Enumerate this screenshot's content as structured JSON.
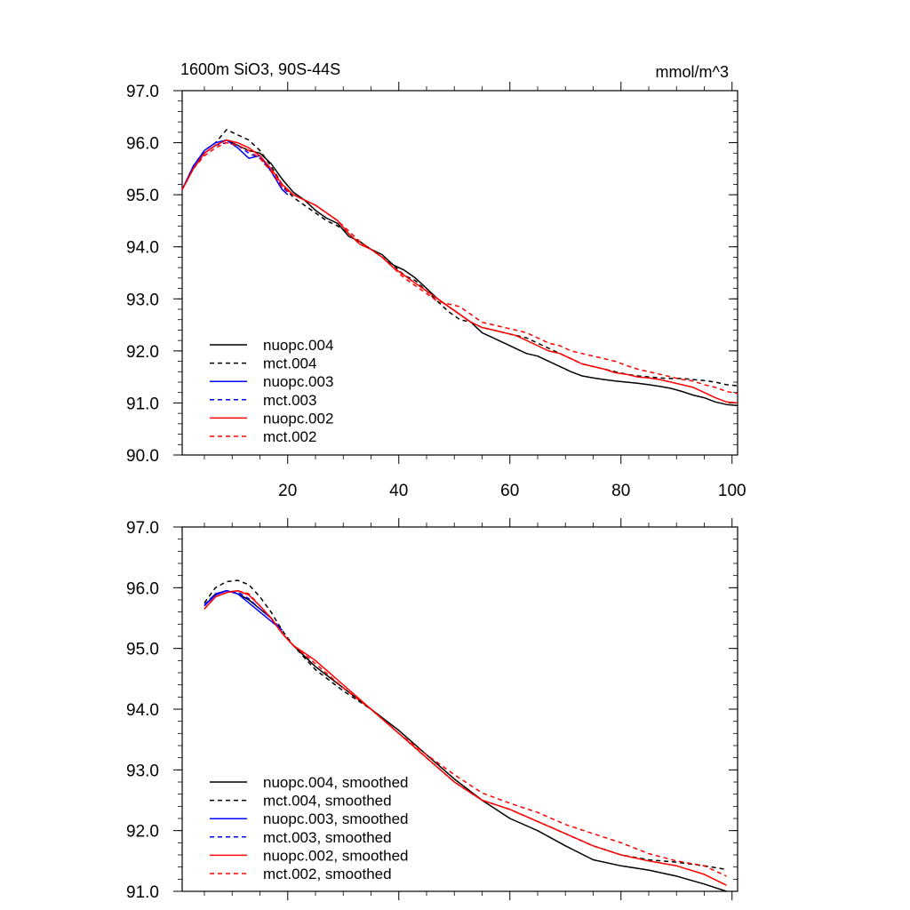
{
  "figure": {
    "title_left": "1600m SiO3, 90S-44S",
    "title_right": "mmol/m^3"
  },
  "chart_data": [
    {
      "type": "line",
      "title": "1600m SiO3, 90S-44S",
      "unit": "mmol/m^3",
      "xlim": [
        1,
        101
      ],
      "ylim": [
        90,
        97
      ],
      "x_ticks": [
        20,
        40,
        60,
        80,
        100
      ],
      "x_tick_labels": [
        "20",
        "40",
        "60",
        "80",
        "100"
      ],
      "y_ticks": [
        90,
        91,
        92,
        93,
        94,
        95,
        96,
        97
      ],
      "y_tick_labels": [
        "90.0",
        "91.0",
        "92.0",
        "93.0",
        "94.0",
        "95.0",
        "96.0",
        "97.0"
      ],
      "grid": false,
      "legend_position": "bottom-left",
      "series": [
        {
          "name": "nuopc.004",
          "color": "#000000",
          "dash": "solid",
          "x": [
            1,
            3,
            5,
            7,
            9,
            11,
            13,
            15,
            17,
            19,
            21,
            23,
            25,
            27,
            29,
            31,
            33,
            35,
            37,
            39,
            41,
            43,
            45,
            47,
            49,
            51,
            53,
            55,
            57,
            59,
            61,
            63,
            65,
            67,
            69,
            71,
            73,
            75,
            77,
            79,
            81,
            83,
            85,
            87,
            89,
            91,
            93,
            95,
            97,
            99,
            101
          ],
          "y": [
            95.1,
            95.5,
            95.8,
            95.95,
            96.05,
            95.95,
            95.85,
            95.8,
            95.6,
            95.3,
            95.05,
            94.9,
            94.7,
            94.55,
            94.45,
            94.2,
            94.1,
            93.95,
            93.85,
            93.65,
            93.55,
            93.4,
            93.2,
            93.0,
            92.85,
            92.7,
            92.55,
            92.35,
            92.25,
            92.15,
            92.05,
            91.95,
            91.9,
            91.8,
            91.7,
            91.6,
            91.52,
            91.48,
            91.45,
            91.42,
            91.4,
            91.38,
            91.35,
            91.32,
            91.28,
            91.22,
            91.15,
            91.1,
            91.02,
            90.97,
            90.95
          ]
        },
        {
          "name": "mct.004",
          "color": "#000000",
          "dash": "dashed",
          "x": [
            1,
            3,
            5,
            7,
            9,
            11,
            13,
            15,
            17,
            19,
            21,
            23,
            25,
            27,
            29,
            31,
            33,
            35,
            37,
            39,
            41,
            43,
            45,
            47,
            49,
            51,
            53,
            55,
            57,
            59,
            61,
            63,
            65,
            67,
            69,
            71,
            73,
            75,
            77,
            79,
            81,
            83,
            85,
            87,
            89,
            91,
            93,
            95,
            97,
            99,
            101
          ],
          "y": [
            95.1,
            95.55,
            95.85,
            96.0,
            96.25,
            96.15,
            96.05,
            95.85,
            95.55,
            95.2,
            94.95,
            94.8,
            94.65,
            94.5,
            94.4,
            94.25,
            94.05,
            93.95,
            93.8,
            93.65,
            93.45,
            93.35,
            93.15,
            92.95,
            92.75,
            92.6,
            92.55,
            92.45,
            92.4,
            92.35,
            92.3,
            92.25,
            92.15,
            92.05,
            91.95,
            91.85,
            91.75,
            91.7,
            91.65,
            91.6,
            91.55,
            91.52,
            91.5,
            91.48,
            91.47,
            91.47,
            91.45,
            91.43,
            91.4,
            91.35,
            91.33
          ]
        },
        {
          "name": "nuopc.003",
          "color": "#0000ff",
          "dash": "solid",
          "x": [
            1,
            3,
            5,
            7,
            9,
            11,
            13,
            15,
            17,
            19,
            20
          ],
          "y": [
            95.1,
            95.55,
            95.85,
            96.0,
            96.05,
            95.9,
            95.7,
            95.75,
            95.45,
            95.1,
            95.0
          ]
        },
        {
          "name": "mct.003",
          "color": "#0000ff",
          "dash": "dashed",
          "x": [
            1,
            3,
            5,
            7,
            9,
            11,
            13,
            15,
            17,
            19,
            20
          ],
          "y": [
            95.1,
            95.5,
            95.8,
            95.95,
            96.0,
            95.95,
            95.8,
            95.7,
            95.45,
            95.15,
            95.05
          ]
        },
        {
          "name": "nuopc.002",
          "color": "#ff0000",
          "dash": "solid",
          "x": [
            1,
            3,
            5,
            7,
            9,
            11,
            13,
            15,
            17,
            19,
            21,
            23,
            25,
            27,
            29,
            31,
            33,
            35,
            37,
            39,
            41,
            43,
            45,
            47,
            49,
            51,
            53,
            55,
            57,
            59,
            61,
            63,
            65,
            67,
            69,
            71,
            73,
            75,
            77,
            79,
            81,
            83,
            85,
            87,
            89,
            91,
            93,
            95,
            97,
            99,
            101
          ],
          "y": [
            95.1,
            95.5,
            95.8,
            95.95,
            96.05,
            96.0,
            95.9,
            95.75,
            95.5,
            95.2,
            95.0,
            94.9,
            94.8,
            94.65,
            94.5,
            94.25,
            94.05,
            93.95,
            93.8,
            93.6,
            93.45,
            93.3,
            93.15,
            93.0,
            92.85,
            92.7,
            92.55,
            92.45,
            92.4,
            92.35,
            92.3,
            92.2,
            92.1,
            92.0,
            91.95,
            91.85,
            91.75,
            91.7,
            91.65,
            91.58,
            91.55,
            91.5,
            91.48,
            91.45,
            91.4,
            91.35,
            91.3,
            91.2,
            91.1,
            91.02,
            91.0
          ]
        },
        {
          "name": "mct.002",
          "color": "#ff0000",
          "dash": "dashed",
          "x": [
            1,
            3,
            5,
            7,
            9,
            11,
            13,
            15,
            17,
            19,
            21,
            23,
            25,
            27,
            29,
            31,
            33,
            35,
            37,
            39,
            41,
            43,
            45,
            47,
            49,
            51,
            53,
            55,
            57,
            59,
            61,
            63,
            65,
            67,
            69,
            71,
            73,
            75,
            77,
            79,
            81,
            83,
            85,
            87,
            89,
            91,
            93,
            95,
            97,
            99,
            101
          ],
          "y": [
            95.1,
            95.5,
            95.75,
            95.9,
            96.0,
            95.95,
            95.85,
            95.7,
            95.45,
            95.15,
            95.0,
            94.9,
            94.8,
            94.65,
            94.5,
            94.3,
            94.1,
            93.95,
            93.8,
            93.6,
            93.4,
            93.25,
            93.1,
            92.95,
            92.9,
            92.85,
            92.7,
            92.55,
            92.5,
            92.45,
            92.4,
            92.35,
            92.25,
            92.15,
            92.1,
            92.0,
            91.95,
            91.9,
            91.85,
            91.8,
            91.72,
            91.65,
            91.6,
            91.55,
            91.5,
            91.45,
            91.42,
            91.35,
            91.3,
            91.22,
            91.18
          ]
        }
      ]
    },
    {
      "type": "line",
      "xlim": [
        1,
        101
      ],
      "ylim": [
        91,
        97
      ],
      "x_ticks": [
        20,
        40,
        60,
        80,
        100
      ],
      "y_ticks": [
        91,
        92,
        93,
        94,
        95,
        96,
        97
      ],
      "y_tick_labels": [
        "91.0",
        "92.0",
        "93.0",
        "94.0",
        "95.0",
        "96.0",
        "97.0"
      ],
      "grid": false,
      "legend_position": "bottom-left",
      "series": [
        {
          "name": "nuopc.004, smoothed",
          "color": "#000000",
          "dash": "solid",
          "x": [
            5,
            7,
            9,
            11,
            13,
            15,
            17,
            19,
            21,
            25,
            30,
            35,
            40,
            45,
            50,
            55,
            60,
            65,
            70,
            75,
            80,
            85,
            90,
            95,
            99
          ],
          "y": [
            95.7,
            95.9,
            95.95,
            95.9,
            95.8,
            95.65,
            95.5,
            95.25,
            95.05,
            94.7,
            94.35,
            94.0,
            93.65,
            93.25,
            92.85,
            92.5,
            92.2,
            92.0,
            91.75,
            91.52,
            91.42,
            91.35,
            91.25,
            91.12,
            91.0
          ]
        },
        {
          "name": "mct.004, smoothed",
          "color": "#000000",
          "dash": "dashed",
          "x": [
            5,
            7,
            9,
            11,
            13,
            15,
            17,
            19,
            21,
            25,
            30,
            35,
            40,
            45,
            50,
            55,
            60,
            65,
            70,
            75,
            80,
            85,
            90,
            95,
            99
          ],
          "y": [
            95.75,
            96.0,
            96.1,
            96.12,
            96.05,
            95.85,
            95.6,
            95.3,
            95.05,
            94.65,
            94.3,
            94.0,
            93.6,
            93.2,
            92.8,
            92.5,
            92.35,
            92.15,
            91.95,
            91.75,
            91.6,
            91.52,
            91.48,
            91.42,
            91.36
          ]
        },
        {
          "name": "nuopc.003, smoothed",
          "color": "#0000ff",
          "dash": "solid",
          "x": [
            5,
            7,
            9,
            11,
            13,
            15,
            17,
            19
          ],
          "y": [
            95.7,
            95.88,
            95.95,
            95.9,
            95.75,
            95.6,
            95.45,
            95.3
          ]
        },
        {
          "name": "mct.003, smoothed",
          "color": "#0000ff",
          "dash": "dashed",
          "x": [
            5,
            7,
            9,
            11,
            13,
            15,
            17,
            19
          ],
          "y": [
            95.72,
            95.9,
            95.95,
            95.93,
            95.82,
            95.65,
            95.5,
            95.3
          ]
        },
        {
          "name": "nuopc.002, smoothed",
          "color": "#ff0000",
          "dash": "solid",
          "x": [
            5,
            7,
            9,
            11,
            13,
            15,
            17,
            19,
            21,
            25,
            30,
            35,
            40,
            45,
            50,
            55,
            60,
            65,
            70,
            75,
            80,
            85,
            90,
            95,
            99
          ],
          "y": [
            95.65,
            95.85,
            95.92,
            95.95,
            95.88,
            95.7,
            95.5,
            95.25,
            95.05,
            94.8,
            94.4,
            94.0,
            93.6,
            93.2,
            92.8,
            92.5,
            92.35,
            92.15,
            91.95,
            91.75,
            91.6,
            91.5,
            91.42,
            91.28,
            91.1
          ]
        },
        {
          "name": "mct.002, smoothed",
          "color": "#ff0000",
          "dash": "dashed",
          "x": [
            5,
            7,
            9,
            11,
            13,
            15,
            17,
            19,
            21,
            25,
            30,
            35,
            40,
            45,
            50,
            55,
            60,
            65,
            70,
            75,
            80,
            85,
            90,
            95,
            99
          ],
          "y": [
            95.65,
            95.85,
            95.92,
            95.95,
            95.9,
            95.7,
            95.5,
            95.25,
            95.05,
            94.75,
            94.35,
            94.0,
            93.6,
            93.25,
            92.92,
            92.62,
            92.45,
            92.3,
            92.1,
            91.95,
            91.8,
            91.62,
            91.5,
            91.42,
            91.25
          ]
        }
      ]
    }
  ]
}
